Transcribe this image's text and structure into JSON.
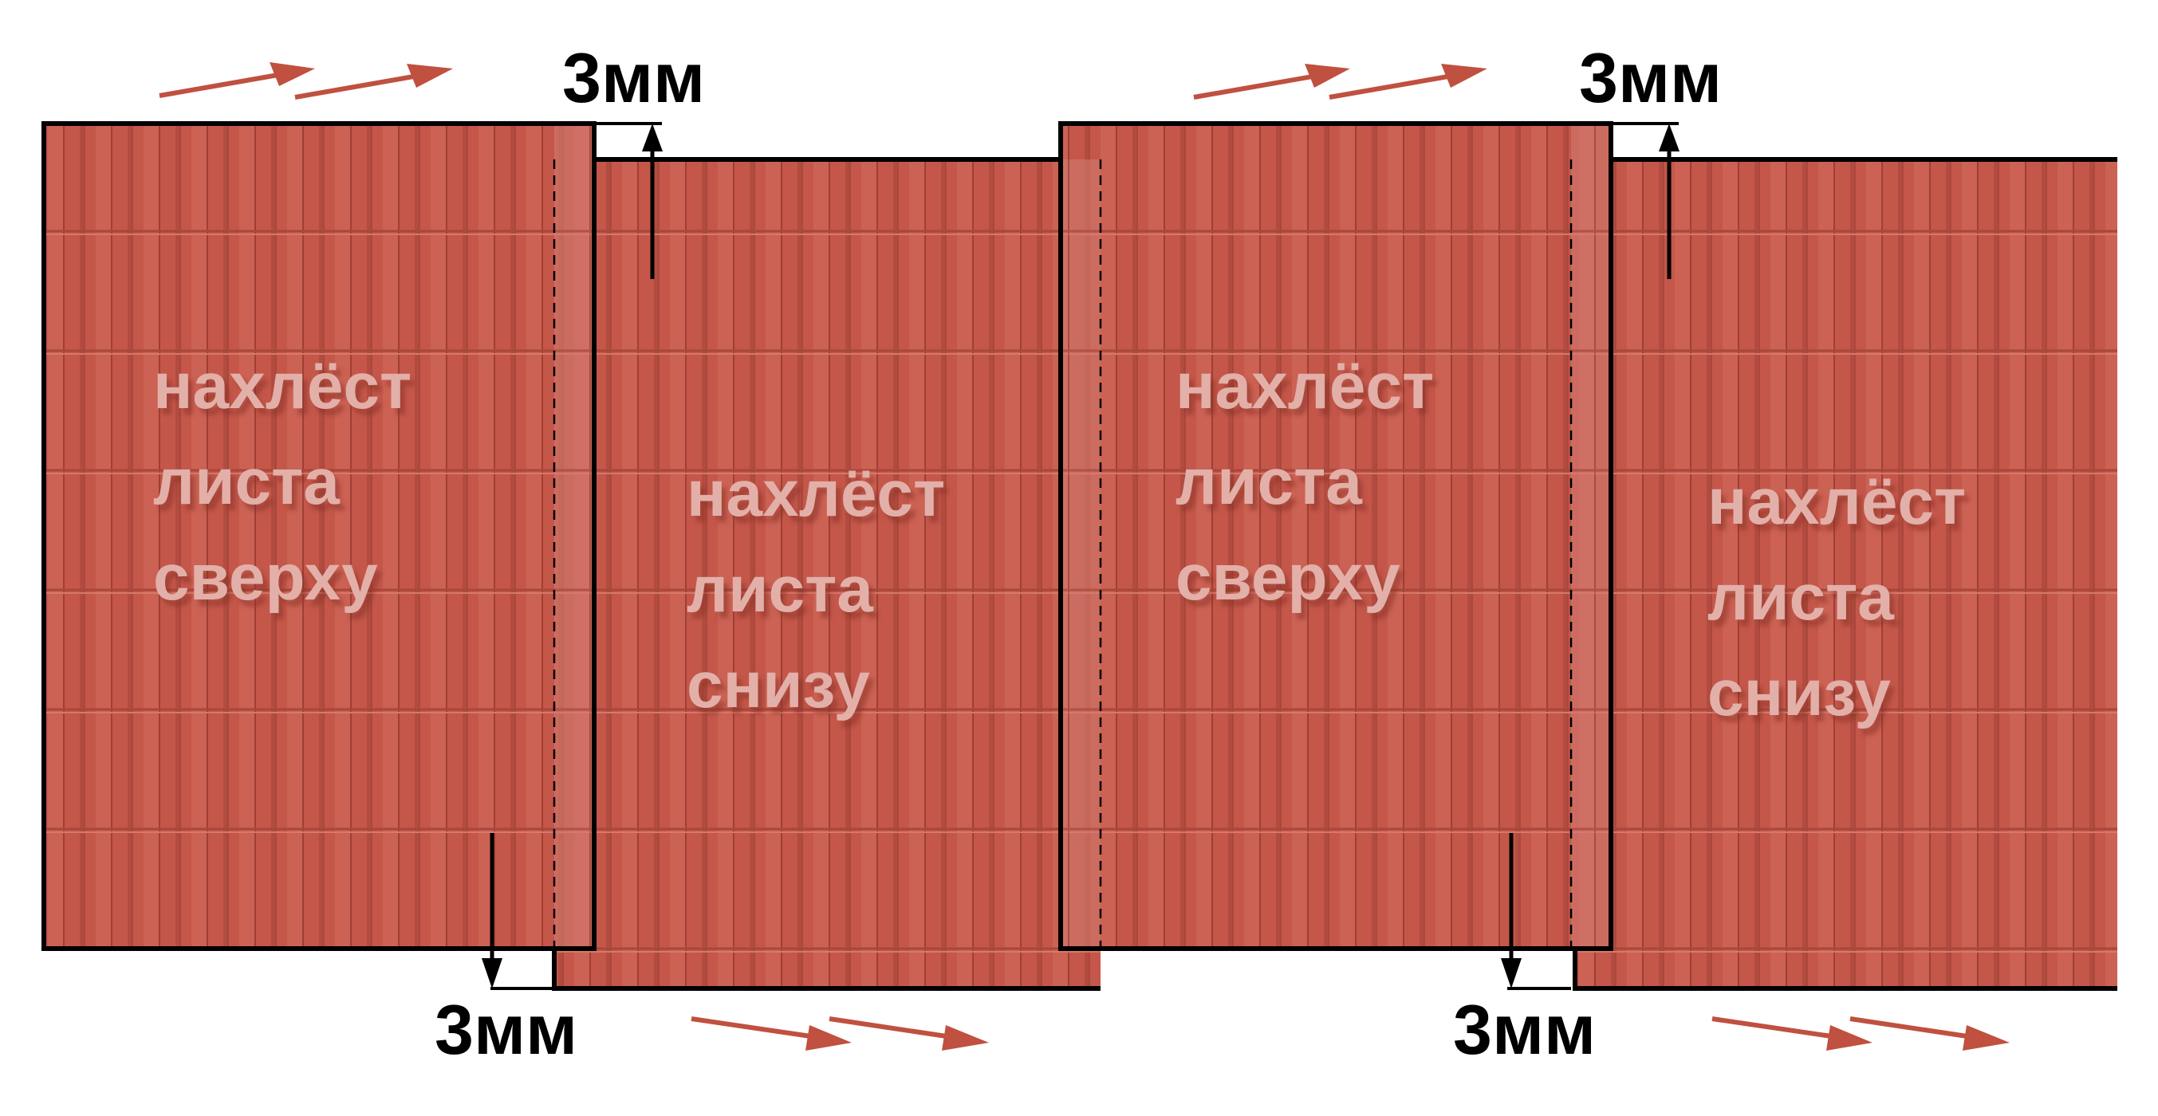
{
  "diagram": {
    "labels": {
      "gap_top": "3мм",
      "gap_bottom": "3мм",
      "sheet_top_lines": [
        "нахлёст",
        "листа",
        "сверху"
      ],
      "sheet_bottom_lines": [
        "нахлёст",
        "листа",
        "снизу"
      ]
    },
    "colors": {
      "tile": "#c4574a",
      "tile_dark": "#9e3f35",
      "tile_light": "#d6786b",
      "arrow": "#c0503f",
      "outline": "#000000",
      "watermark_text": "#e2b0a8"
    }
  }
}
